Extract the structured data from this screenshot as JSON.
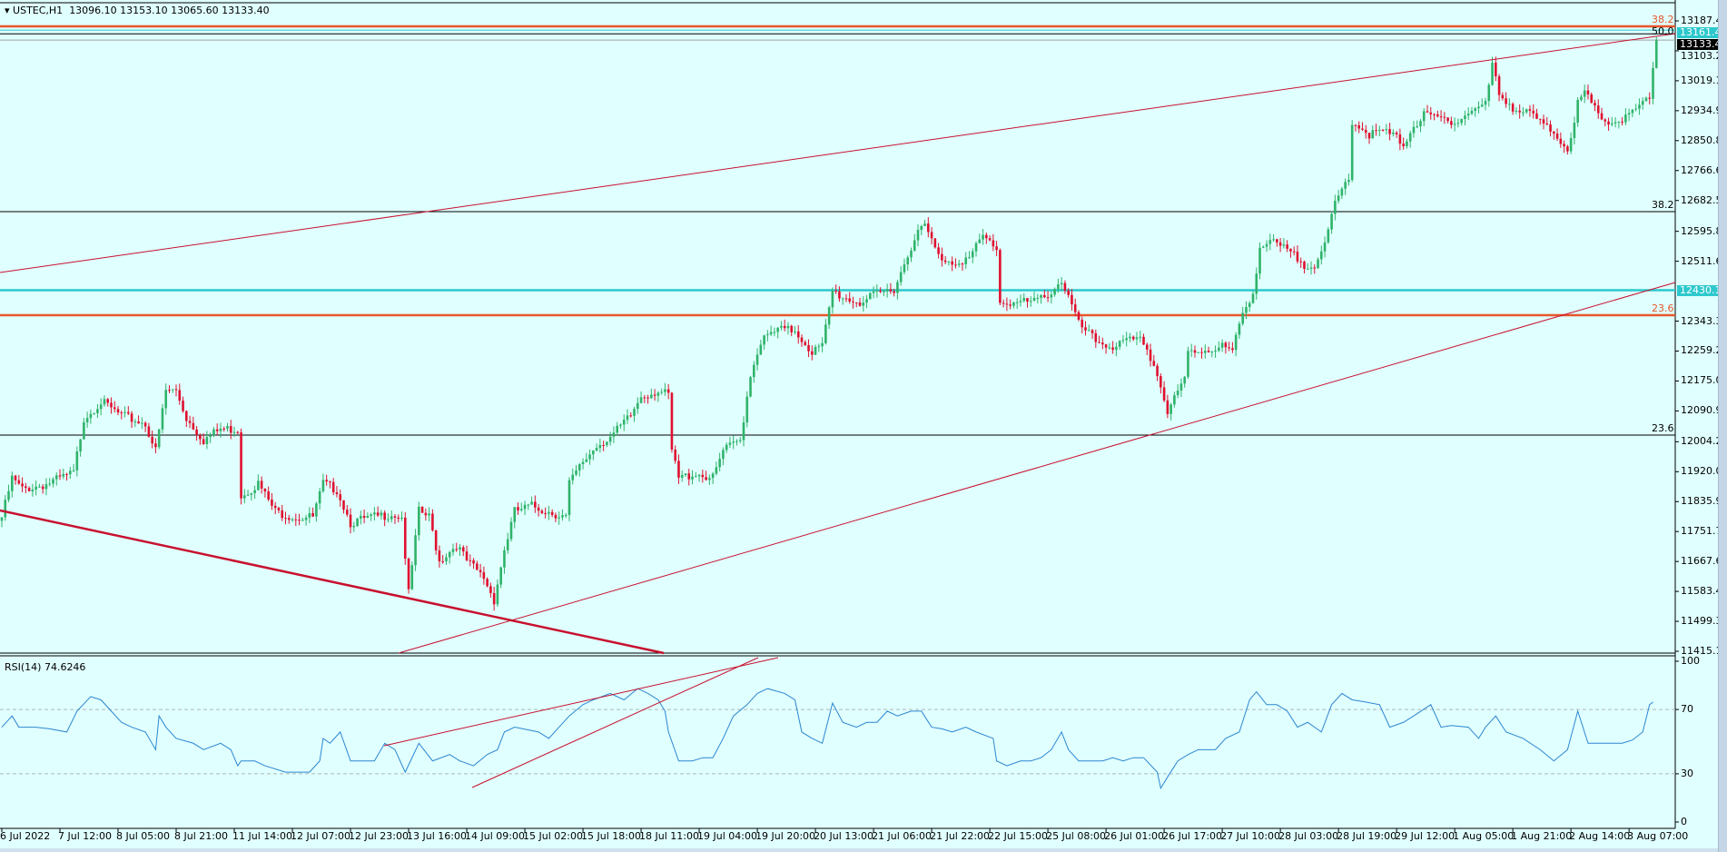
{
  "header": {
    "symbol": "USTEC,H1",
    "ohlc": "13096.10 13153.10 13065.60 13133.40"
  },
  "rsi_label": "RSI(14) 74.6246",
  "colors": {
    "background": "#e0ffff",
    "bull": "#2fb36a",
    "bear": "#e0102f",
    "trend": "#c8102e",
    "fib_orange": "#e8562a",
    "cyan": "#2cc8cc",
    "rsi": "#2c86d0"
  },
  "chart_data": [
    {
      "type": "candlestick",
      "title": "USTEC,H1",
      "ylim": [
        11415.15,
        13187.4
      ],
      "y_ticks": [
        "13187.40",
        "13103.25",
        "13019.10",
        "12934.95",
        "12850.80",
        "12766.65",
        "12682.50",
        "12595.80",
        "12511.65",
        "12343.35",
        "12259.20",
        "12175.05",
        "12090.90",
        "12004.20",
        "11920.05",
        "11835.90",
        "11751.75",
        "11667.60",
        "11583.45",
        "11499.30",
        "11415.15"
      ],
      "x_ticks": [
        "6 Jul 2022",
        "7 Jul 12:00",
        "8 Jul 05:00",
        "8 Jul 21:00",
        "11 Jul 14:00",
        "12 Jul 07:00",
        "12 Jul 23:00",
        "13 Jul 16:00",
        "14 Jul 09:00",
        "15 Jul 02:00",
        "15 Jul 18:00",
        "18 Jul 11:00",
        "19 Jul 04:00",
        "19 Jul 20:00",
        "20 Jul 13:00",
        "21 Jul 06:00",
        "21 Jul 22:00",
        "22 Jul 15:00",
        "25 Jul 08:00",
        "26 Jul 01:00",
        "26 Jul 17:00",
        "27 Jul 10:00",
        "28 Jul 03:00",
        "28 Jul 19:00",
        "29 Jul 12:00",
        "1 Aug 05:00",
        "1 Aug 21:00",
        "2 Aug 14:00",
        "3 Aug 07:00"
      ],
      "bars_per_tick": 17,
      "close_path": [
        [
          0,
          11792
        ],
        [
          3,
          11901
        ],
        [
          6,
          11870
        ],
        [
          13,
          11885
        ],
        [
          21,
          11916
        ],
        [
          24,
          12071
        ],
        [
          29,
          12117
        ],
        [
          35,
          12077
        ],
        [
          42,
          12055
        ],
        [
          45,
          11978
        ],
        [
          48,
          12148
        ],
        [
          51,
          12148
        ],
        [
          54,
          12071
        ],
        [
          59,
          12009
        ],
        [
          64,
          12040
        ],
        [
          69,
          12040
        ],
        [
          70,
          11854
        ],
        [
          75,
          11886
        ],
        [
          80,
          11808
        ],
        [
          86,
          11792
        ],
        [
          91,
          11792
        ],
        [
          94,
          11886
        ],
        [
          98,
          11870
        ],
        [
          102,
          11777
        ],
        [
          109,
          11792
        ],
        [
          114,
          11802
        ],
        [
          117,
          11792
        ],
        [
          119,
          11576
        ],
        [
          122,
          11808
        ],
        [
          125,
          11792
        ],
        [
          128,
          11669
        ],
        [
          133,
          11715
        ],
        [
          136,
          11669
        ],
        [
          141,
          11622
        ],
        [
          144,
          11560
        ],
        [
          147,
          11700
        ],
        [
          150,
          11808
        ],
        [
          155,
          11823
        ],
        [
          160,
          11808
        ],
        [
          165,
          11792
        ],
        [
          166,
          11886
        ],
        [
          170,
          11947
        ],
        [
          174,
          11994
        ],
        [
          179,
          12025
        ],
        [
          184,
          12077
        ],
        [
          187,
          12133
        ],
        [
          192,
          12148
        ],
        [
          195,
          12133
        ],
        [
          196,
          11978
        ],
        [
          198,
          11901
        ],
        [
          203,
          11916
        ],
        [
          208,
          11901
        ],
        [
          211,
          11978
        ],
        [
          216,
          12009
        ],
        [
          219,
          12195
        ],
        [
          222,
          12287
        ],
        [
          227,
          12318
        ],
        [
          232,
          12318
        ],
        [
          237,
          12257
        ],
        [
          240,
          12272
        ],
        [
          243,
          12427
        ],
        [
          246,
          12411
        ],
        [
          251,
          12396
        ],
        [
          256,
          12417
        ],
        [
          261,
          12436
        ],
        [
          264,
          12504
        ],
        [
          267,
          12581
        ],
        [
          270,
          12612
        ],
        [
          274,
          12525
        ],
        [
          278,
          12510
        ],
        [
          283,
          12519
        ],
        [
          287,
          12581
        ],
        [
          291,
          12550
        ],
        [
          292,
          12396
        ],
        [
          296,
          12396
        ],
        [
          302,
          12396
        ],
        [
          307,
          12427
        ],
        [
          310,
          12458
        ],
        [
          312,
          12411
        ],
        [
          315,
          12334
        ],
        [
          320,
          12287
        ],
        [
          325,
          12272
        ],
        [
          330,
          12287
        ],
        [
          334,
          12287
        ],
        [
          338,
          12195
        ],
        [
          341,
          12086
        ],
        [
          346,
          12179
        ],
        [
          347,
          12257
        ],
        [
          352,
          12263
        ],
        [
          357,
          12272
        ],
        [
          360,
          12257
        ],
        [
          363,
          12365
        ],
        [
          366,
          12427
        ],
        [
          368,
          12551
        ],
        [
          371,
          12566
        ],
        [
          376,
          12541
        ],
        [
          381,
          12504
        ],
        [
          384,
          12504
        ],
        [
          387,
          12551
        ],
        [
          390,
          12674
        ],
        [
          394,
          12751
        ],
        [
          395,
          12906
        ],
        [
          400,
          12869
        ],
        [
          405,
          12875
        ],
        [
          410,
          12844
        ],
        [
          413,
          12891
        ],
        [
          416,
          12921
        ],
        [
          421,
          12912
        ],
        [
          426,
          12906
        ],
        [
          430,
          12937
        ],
        [
          434,
          12952
        ],
        [
          436,
          13062
        ],
        [
          438,
          12983
        ],
        [
          443,
          12937
        ],
        [
          448,
          12921
        ],
        [
          451,
          12891
        ],
        [
          454,
          12875
        ],
        [
          458,
          12829
        ],
        [
          461,
          12952
        ],
        [
          463,
          12983
        ],
        [
          466,
          12937
        ],
        [
          470,
          12900
        ],
        [
          475,
          12912
        ],
        [
          478,
          12937
        ],
        [
          482,
          12968
        ],
        [
          483,
          13062
        ],
        [
          484,
          13133.4
        ]
      ],
      "levels": [
        {
          "name": "fib-38.2-top",
          "price": 13172,
          "label": "38.2",
          "color": "#e8562a"
        },
        {
          "name": "cyan-level-top",
          "price": 13161.41,
          "label": "13161.41",
          "color": "#2cc8cc"
        },
        {
          "name": "fib-50.0",
          "price": 13151,
          "label": "50.0",
          "color": "#000000"
        },
        {
          "name": "current-price",
          "price": 13133.4,
          "label": "13133.40",
          "color": "#a0a0a0"
        },
        {
          "name": "fib-38.2",
          "price": 12651,
          "label": "38.2",
          "color": "#000000"
        },
        {
          "name": "cyan-level",
          "price": 12430.13,
          "label": "12430.13",
          "color": "#2cc8cc"
        },
        {
          "name": "fib-23.6-orange",
          "price": 12360,
          "label": "23.6",
          "color": "#e8562a"
        },
        {
          "name": "fib-23.6",
          "price": 12023,
          "label": "23.6",
          "color": "#000000"
        }
      ]
    },
    {
      "type": "line",
      "title": "RSI(14) 74.6246",
      "ylim": [
        0,
        100
      ],
      "y_ticks": [
        "100",
        "70",
        "30",
        "0"
      ],
      "levels": [
        70,
        30
      ],
      "values": [
        [
          0,
          59
        ],
        [
          3,
          66
        ],
        [
          5,
          59
        ],
        [
          10,
          59
        ],
        [
          14,
          58
        ],
        [
          19,
          56
        ],
        [
          22,
          69
        ],
        [
          26,
          78
        ],
        [
          29,
          76
        ],
        [
          32,
          69
        ],
        [
          35,
          62
        ],
        [
          38,
          59
        ],
        [
          42,
          56
        ],
        [
          45,
          45
        ],
        [
          46,
          66
        ],
        [
          48,
          59
        ],
        [
          51,
          52
        ],
        [
          56,
          49
        ],
        [
          59,
          45
        ],
        [
          64,
          49
        ],
        [
          67,
          45
        ],
        [
          69,
          35
        ],
        [
          70,
          38
        ],
        [
          74,
          38
        ],
        [
          77,
          35
        ],
        [
          83,
          31
        ],
        [
          90,
          31
        ],
        [
          93,
          38
        ],
        [
          94,
          52
        ],
        [
          96,
          49
        ],
        [
          99,
          56
        ],
        [
          102,
          38
        ],
        [
          109,
          38
        ],
        [
          112,
          49
        ],
        [
          115,
          45
        ],
        [
          118,
          31
        ],
        [
          122,
          49
        ],
        [
          126,
          38
        ],
        [
          131,
          42
        ],
        [
          134,
          38
        ],
        [
          138,
          35
        ],
        [
          142,
          42
        ],
        [
          145,
          45
        ],
        [
          147,
          56
        ],
        [
          150,
          59
        ],
        [
          157,
          56
        ],
        [
          160,
          52
        ],
        [
          163,
          59
        ],
        [
          166,
          66
        ],
        [
          170,
          73
        ],
        [
          173,
          76
        ],
        [
          178,
          80
        ],
        [
          182,
          76
        ],
        [
          186,
          83
        ],
        [
          189,
          80
        ],
        [
          192,
          76
        ],
        [
          194,
          69
        ],
        [
          195,
          56
        ],
        [
          198,
          38
        ],
        [
          202,
          38
        ],
        [
          205,
          40
        ],
        [
          208,
          40
        ],
        [
          211,
          52
        ],
        [
          214,
          66
        ],
        [
          218,
          73
        ],
        [
          221,
          80
        ],
        [
          224,
          83
        ],
        [
          229,
          80
        ],
        [
          232,
          76
        ],
        [
          234,
          56
        ],
        [
          237,
          52
        ],
        [
          240,
          49
        ],
        [
          243,
          74
        ],
        [
          246,
          62
        ],
        [
          250,
          59
        ],
        [
          253,
          62
        ],
        [
          256,
          62
        ],
        [
          259,
          69
        ],
        [
          262,
          66
        ],
        [
          266,
          69
        ],
        [
          269,
          69
        ],
        [
          272,
          59
        ],
        [
          275,
          58
        ],
        [
          278,
          56
        ],
        [
          282,
          59
        ],
        [
          285,
          56
        ],
        [
          290,
          52
        ],
        [
          291,
          38
        ],
        [
          294,
          35
        ],
        [
          298,
          38
        ],
        [
          301,
          38
        ],
        [
          304,
          40
        ],
        [
          307,
          45
        ],
        [
          310,
          56
        ],
        [
          312,
          45
        ],
        [
          315,
          38
        ],
        [
          318,
          38
        ],
        [
          322,
          38
        ],
        [
          325,
          40
        ],
        [
          328,
          38
        ],
        [
          331,
          40
        ],
        [
          334,
          40
        ],
        [
          338,
          31
        ],
        [
          339,
          21
        ],
        [
          341,
          28
        ],
        [
          344,
          38
        ],
        [
          347,
          42
        ],
        [
          350,
          45
        ],
        [
          355,
          45
        ],
        [
          358,
          52
        ],
        [
          362,
          56
        ],
        [
          365,
          76
        ],
        [
          367,
          81
        ],
        [
          370,
          73
        ],
        [
          373,
          73
        ],
        [
          376,
          69
        ],
        [
          379,
          59
        ],
        [
          382,
          62
        ],
        [
          386,
          56
        ],
        [
          389,
          73
        ],
        [
          392,
          80
        ],
        [
          395,
          76
        ],
        [
          398,
          75
        ],
        [
          403,
          73
        ],
        [
          406,
          59
        ],
        [
          410,
          62
        ],
        [
          413,
          66
        ],
        [
          418,
          73
        ],
        [
          421,
          59
        ],
        [
          424,
          60
        ],
        [
          429,
          59
        ],
        [
          432,
          52
        ],
        [
          434,
          59
        ],
        [
          437,
          66
        ],
        [
          440,
          56
        ],
        [
          445,
          52
        ],
        [
          450,
          45
        ],
        [
          454,
          38
        ],
        [
          458,
          45
        ],
        [
          461,
          69
        ],
        [
          464,
          49
        ],
        [
          469,
          49
        ],
        [
          474,
          49
        ],
        [
          477,
          51
        ],
        [
          480,
          56
        ],
        [
          482,
          73
        ],
        [
          483,
          74.6
        ]
      ],
      "trendlines": 2
    }
  ]
}
